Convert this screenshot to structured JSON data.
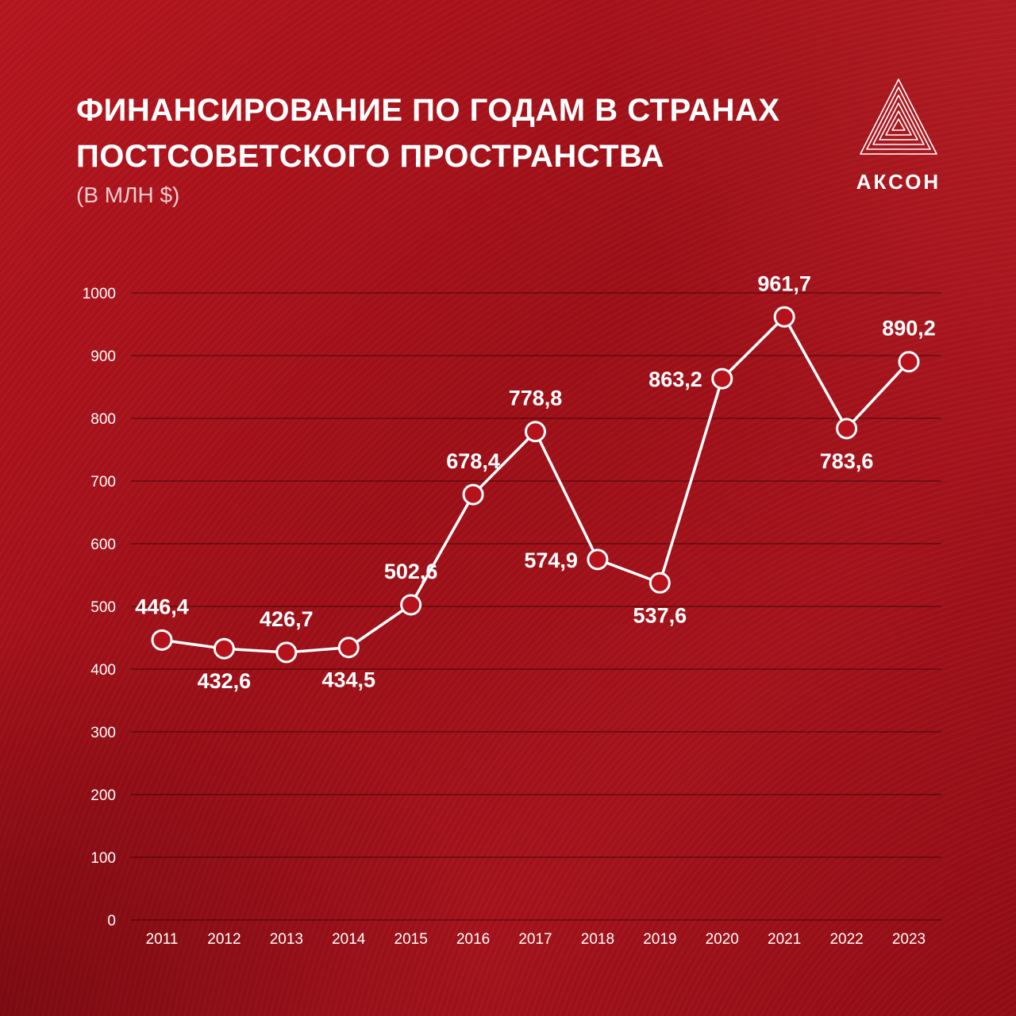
{
  "header": {
    "title_line1": "ФИНАНСИРОВАНИЕ ПО ГОДАМ В СТРАНАХ",
    "title_line2": "ПОСТСОВЕТСКОГО ПРОСТРАНСТВА",
    "subtitle": "(В МЛН $)"
  },
  "logo": {
    "text": "АКСОН",
    "icon": "nested-triangle-logo-icon"
  },
  "colors": {
    "background": "#a1121a",
    "line": "#ffffff",
    "marker_fill": "#b5121c"
  },
  "chart_data": {
    "type": "line",
    "categories": [
      "2011",
      "2012",
      "2013",
      "2014",
      "2015",
      "2016",
      "2017",
      "2018",
      "2019",
      "2020",
      "2021",
      "2022",
      "2023"
    ],
    "values": [
      446.4,
      432.6,
      426.7,
      434.5,
      502.6,
      678.4,
      778.8,
      574.9,
      537.6,
      863.2,
      961.7,
      783.6,
      890.2
    ],
    "data_labels": [
      "446,4",
      "432,6",
      "426,7",
      "434,5",
      "502,6",
      "678,4",
      "778,8",
      "574,9",
      "537,6",
      "863,2",
      "961,7",
      "783,6",
      "890,2"
    ],
    "label_positions": [
      "above",
      "below",
      "above",
      "below",
      "above",
      "above",
      "above",
      "left",
      "below",
      "left",
      "above",
      "below",
      "above"
    ],
    "ylim": [
      0,
      1000
    ],
    "yticks": [
      0,
      100,
      200,
      300,
      400,
      500,
      600,
      700,
      800,
      900,
      1000
    ],
    "ytick_labels": [
      "0",
      "100",
      "200",
      "300",
      "400",
      "500",
      "600",
      "700",
      "800",
      "900",
      "1000"
    ],
    "grid": true,
    "xlabel": "",
    "ylabel": ""
  }
}
